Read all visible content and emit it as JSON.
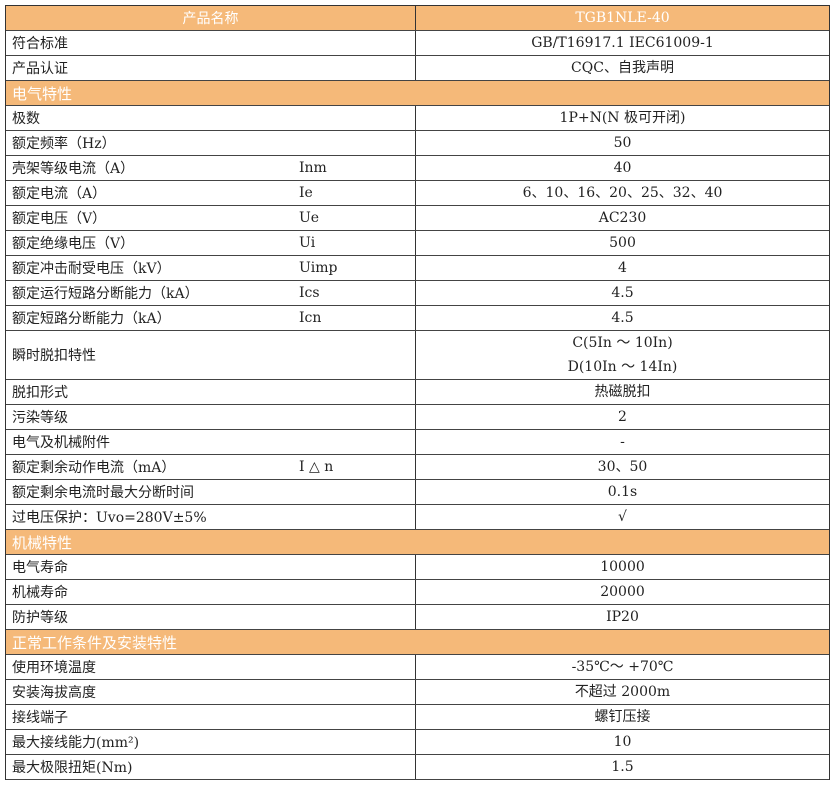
{
  "header": {
    "name_label": "产品名称",
    "model": "TGB1NLE-40"
  },
  "rows": [
    {
      "type": "row",
      "label": "符合标准",
      "symbol": "",
      "values": [
        "GB/T16917.1    IEC61009-1"
      ]
    },
    {
      "type": "row",
      "label": "产品认证",
      "symbol": "",
      "values": [
        "CQC、自我声明"
      ]
    },
    {
      "type": "section",
      "label": "电气特性"
    },
    {
      "type": "row",
      "label": "极数",
      "symbol": "",
      "values": [
        "1P+N(N 极可开闭)"
      ]
    },
    {
      "type": "row",
      "label": "额定频率（Hz）",
      "symbol": "",
      "values": [
        "50"
      ]
    },
    {
      "type": "row",
      "label": "壳架等级电流（A）",
      "symbol": "Inm",
      "values": [
        "40"
      ]
    },
    {
      "type": "row",
      "label": "额定电流（A）",
      "symbol": "Ie",
      "values": [
        "6、10、16、20、25、32、40"
      ]
    },
    {
      "type": "row",
      "label": "额定电压（V）",
      "symbol": "Ue",
      "values": [
        "AC230"
      ]
    },
    {
      "type": "row",
      "label": "额定绝缘电压（V）",
      "symbol": "Ui",
      "values": [
        "500"
      ]
    },
    {
      "type": "row",
      "label": "额定冲击耐受电压（kV）",
      "symbol": "Uimp",
      "values": [
        "4"
      ]
    },
    {
      "type": "row",
      "label": "额定运行短路分断能力（kA）",
      "symbol": "Ics",
      "values": [
        "4.5"
      ]
    },
    {
      "type": "row",
      "label": "额定短路分断能力（kA）",
      "symbol": "Icn",
      "values": [
        "4.5"
      ]
    },
    {
      "type": "double",
      "label": "瞬时脱扣特性",
      "symbol": "",
      "values": [
        "C(5In ～ 10In)",
        "D(10In ～ 14In)"
      ]
    },
    {
      "type": "row",
      "label": "脱扣形式",
      "symbol": "",
      "values": [
        "热磁脱扣"
      ]
    },
    {
      "type": "row",
      "label": "污染等级",
      "symbol": "",
      "values": [
        "2"
      ]
    },
    {
      "type": "row",
      "label": "电气及机械附件",
      "symbol": "",
      "values": [
        "-"
      ]
    },
    {
      "type": "row",
      "label": "额定剩余动作电流（mA）",
      "symbol": "I △ n",
      "values": [
        "30、50"
      ]
    },
    {
      "type": "row",
      "label": "额定剩余电流时最大分断时间",
      "symbol": "",
      "values": [
        "0.1s"
      ]
    },
    {
      "type": "row",
      "label": "过电压保护：Uvo=280V±5%",
      "symbol": "",
      "values": [
        "√"
      ]
    },
    {
      "type": "section",
      "label": "机械特性"
    },
    {
      "type": "row",
      "label": "电气寿命",
      "symbol": "",
      "values": [
        "10000"
      ]
    },
    {
      "type": "row",
      "label": "机械寿命",
      "symbol": "",
      "values": [
        "20000"
      ]
    },
    {
      "type": "row",
      "label": "防护等级",
      "symbol": "",
      "values": [
        "IP20"
      ]
    },
    {
      "type": "section",
      "label": "正常工作条件及安装特性"
    },
    {
      "type": "row",
      "label": "使用环境温度",
      "symbol": "",
      "values": [
        "-35℃～ +70℃"
      ]
    },
    {
      "type": "row",
      "label": "安装海拔高度",
      "symbol": "",
      "values": [
        "不超过 2000m"
      ]
    },
    {
      "type": "row",
      "label": "接线端子",
      "symbol": "",
      "values": [
        "螺钉压接"
      ]
    },
    {
      "type": "row",
      "label": "最大接线能力(mm²)",
      "symbol": "",
      "values": [
        "10"
      ]
    },
    {
      "type": "row",
      "label": "最大极限扭矩(Nm)",
      "symbol": "",
      "values": [
        "1.5"
      ]
    }
  ],
  "colors": {
    "header_bg": "#F5B979",
    "header_text": "#FFFFFF",
    "border": "#333333"
  }
}
